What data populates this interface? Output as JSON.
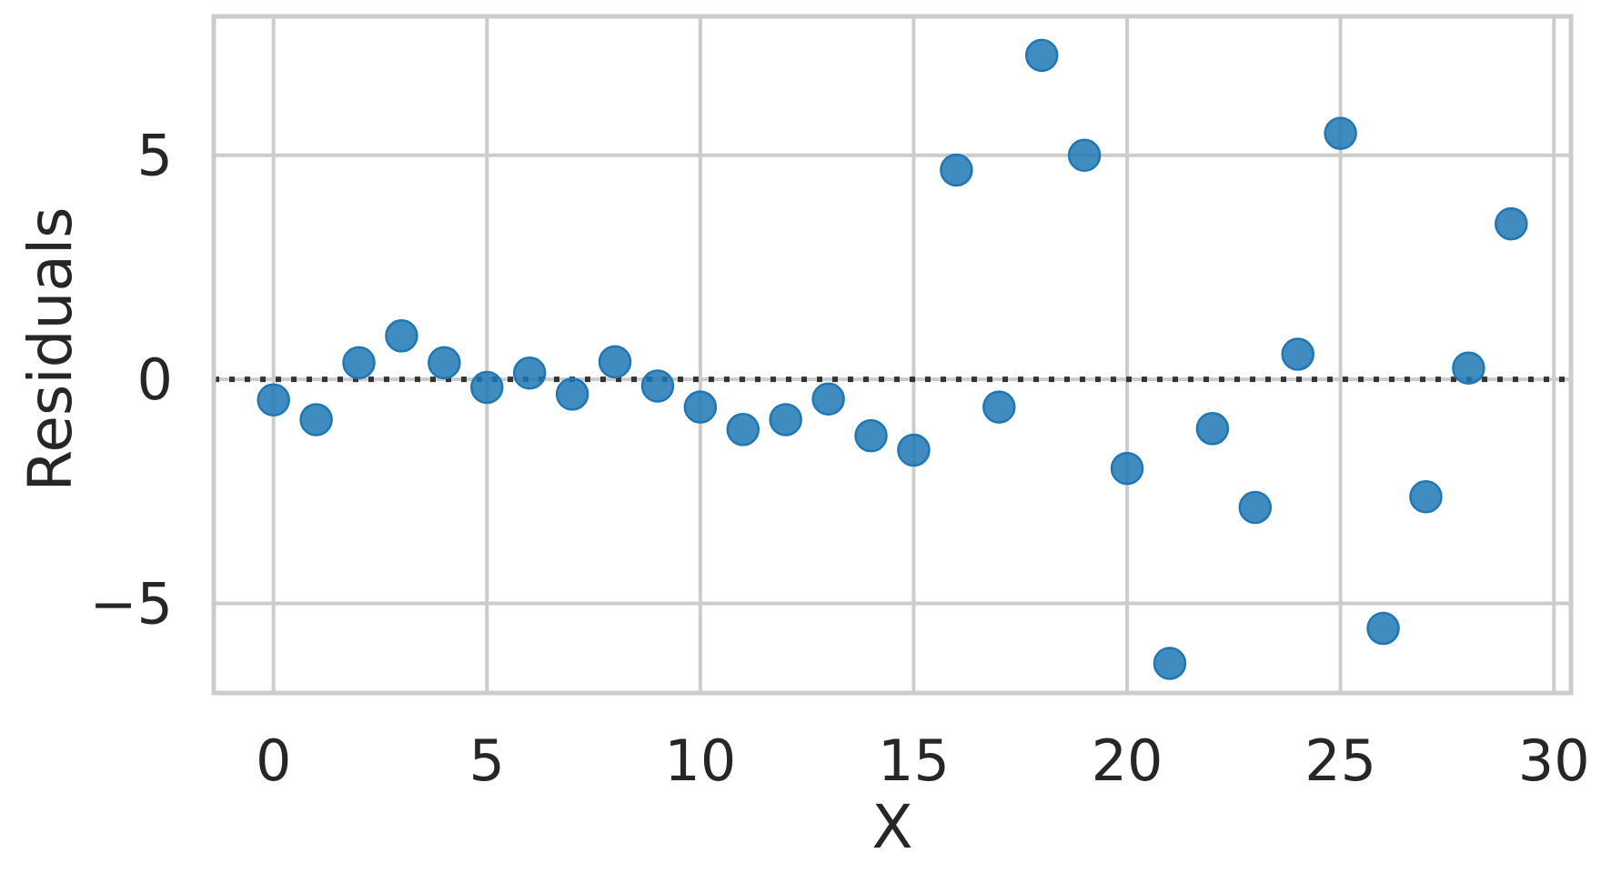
{
  "chart_data": {
    "type": "scatter",
    "title": "",
    "xlabel": "X",
    "ylabel": "Residuals",
    "xlim": [
      -1.4,
      30.4
    ],
    "ylim": [
      -7.0,
      8.1
    ],
    "xticks": [
      0,
      5,
      10,
      15,
      20,
      25,
      30
    ],
    "yticks": [
      -5,
      0,
      5
    ],
    "xtick_labels": [
      "0",
      "5",
      "10",
      "15",
      "20",
      "25",
      "30"
    ],
    "ytick_labels": [
      "−5",
      "0",
      "5"
    ],
    "grid": true,
    "reference_line": {
      "y": 0,
      "style": "dotted"
    },
    "series": [
      {
        "x": [
          0,
          1,
          2,
          3,
          4,
          5,
          6,
          7,
          8,
          9,
          10,
          11,
          12,
          13,
          14,
          15,
          16,
          17,
          18,
          19,
          20,
          21,
          22,
          23,
          24,
          25,
          26,
          27,
          28,
          29
        ],
        "values": [
          -0.46,
          -0.9,
          0.37,
          0.97,
          0.37,
          -0.18,
          0.14,
          -0.33,
          0.39,
          -0.15,
          -0.62,
          -1.12,
          -0.9,
          -0.44,
          -1.26,
          -1.58,
          4.67,
          -0.62,
          7.23,
          5.0,
          -1.99,
          -6.34,
          -1.1,
          -2.86,
          0.56,
          5.49,
          -5.56,
          -2.62,
          0.25,
          3.47
        ]
      }
    ]
  },
  "colors": {
    "point": "#1f77b4",
    "grid": "#cccccc",
    "zero_line": "#333333",
    "text": "#262626"
  }
}
